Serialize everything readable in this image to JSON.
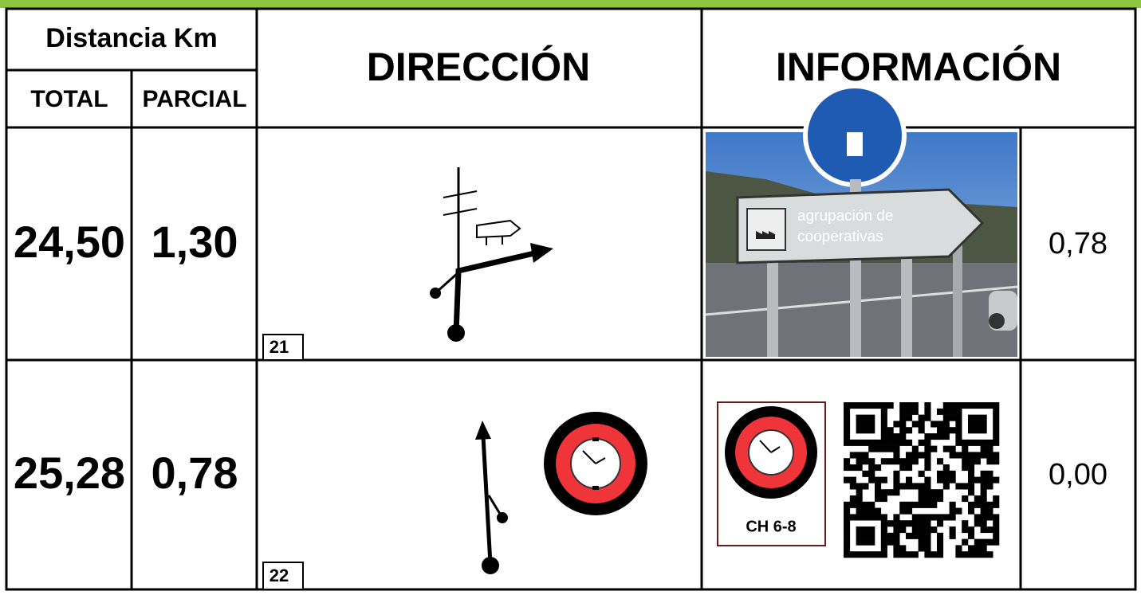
{
  "header": {
    "distance": "Distancia Km",
    "total": "TOTAL",
    "partial": "PARCIAL",
    "direction": "DIRECCIÓN",
    "information": "INFORMACIÓN"
  },
  "rows": [
    {
      "total": "24,50",
      "partial": "1,30",
      "number": "21",
      "sign_text": [
        "agrupación de",
        "cooperativas"
      ],
      "info_value": "0,78"
    },
    {
      "total": "25,28",
      "partial": "0,78",
      "number": "22",
      "badge": "CH 6-8",
      "info_value": "0,00"
    }
  ]
}
